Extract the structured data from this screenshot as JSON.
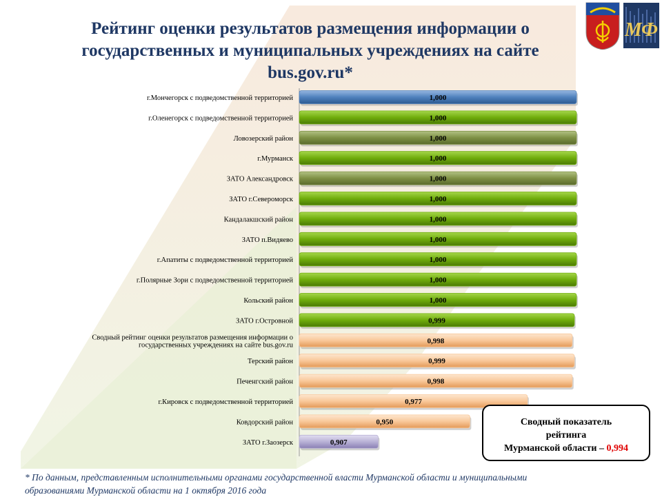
{
  "title": "Рейтинг оценки результатов размещения  информации о\nгосударственных и муниципальных учреждениях на сайте\nbus.gov.ru*",
  "colors": {
    "blue": "#4f81bd",
    "green": "#70ad0c",
    "olive": "#7f9145",
    "peach": "#f9c89a",
    "lavender": "#b9b2d6",
    "title": "#1f3864",
    "accent_red": "#e00000"
  },
  "chart_data": {
    "type": "bar",
    "orientation": "horizontal",
    "categories": [
      "г.Мончегорск с подведомственной территорией",
      "г.Оленегорск с подведомственной территорией",
      "Ловозерский район",
      "г.Мурманск",
      "ЗАТО Александровск",
      "ЗАТО г.Североморск",
      "Кандалакшский район",
      "ЗАТО п.Видяево",
      "г.Апатиты с подведомственной территорией",
      "г.Полярные Зори с подведомственной территорией",
      "Кольский район",
      "ЗАТО г.Островной",
      "Сводный рейтинг  оценки результатов размещения информации о\nгосударственных учреждениях на сайте bus.gov.ru",
      "Терский район",
      "Печенгский район",
      "г.Кировск с подведомственной территорией",
      "Ковдорский район",
      "ЗАТО г.Заозерск"
    ],
    "values": [
      1.0,
      1.0,
      1.0,
      1.0,
      1.0,
      1.0,
      1.0,
      1.0,
      1.0,
      1.0,
      1.0,
      0.999,
      0.998,
      0.999,
      0.998,
      0.977,
      0.95,
      0.907
    ],
    "value_labels": [
      "1,000",
      "1,000",
      "1,000",
      "1,000",
      "1,000",
      "1,000",
      "1,000",
      "1,000",
      "1,000",
      "1,000",
      "1,000",
      "0,999",
      "0,998",
      "0,999",
      "0,998",
      "0,977",
      "0,950",
      "0,907"
    ],
    "bar_colors": [
      "blue",
      "green",
      "olive",
      "green",
      "olive",
      "green",
      "green",
      "green",
      "green",
      "green",
      "green",
      "green",
      "peach",
      "peach",
      "peach",
      "peach",
      "peach",
      "lavender"
    ],
    "xlim": [
      0.87,
      1.0
    ],
    "grid": false,
    "legend": "none"
  },
  "summary": {
    "line1": "Сводный показатель",
    "line2": "рейтинга",
    "line3_prefix": "Мурманской области – ",
    "line3_value": "0,994"
  },
  "footnote": "* По данным, представленным исполнительными органами  государственной власти Мурманской области и муниципальными\nобразованиями Мурманской области на 1 октября 2016 года",
  "emblems": [
    "murmansk-coat-of-arms-icon",
    "ministry-mf-logo-icon"
  ]
}
